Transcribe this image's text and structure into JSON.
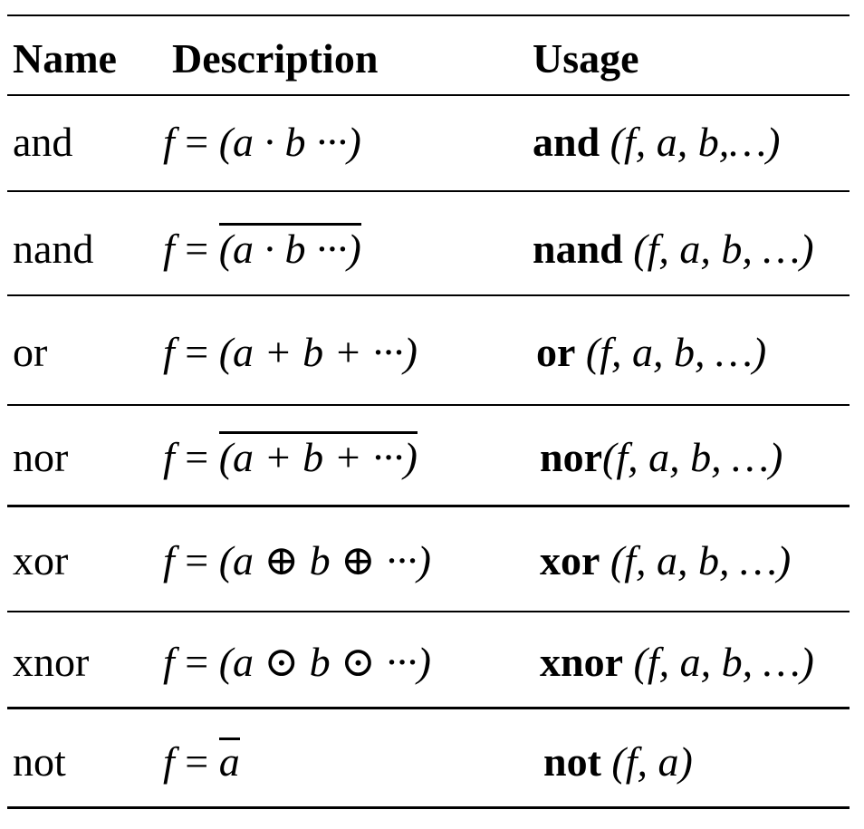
{
  "headers": {
    "name": "Name",
    "description": "Description",
    "usage": "Usage"
  },
  "rows": [
    {
      "name": "and",
      "desc": {
        "f": "f",
        "eq": " = ",
        "expr": "(a · b ···)"
      },
      "usage": {
        "fn": "and",
        "args": " (f, a, b,…)"
      }
    },
    {
      "name": "nand",
      "desc": {
        "f": "f",
        "eq": " = ",
        "expr": "(a · b ···)"
      },
      "usage": {
        "fn": "nand",
        "args": " (f, a, b, …)"
      }
    },
    {
      "name": "or",
      "desc": {
        "f": "f",
        "eq": " = ",
        "expr": "(a + b + ···)"
      },
      "usage": {
        "fn": "or",
        "args": "  (f, a, b, …)"
      }
    },
    {
      "name": "nor",
      "desc": {
        "f": "f",
        "eq": " = ",
        "expr": "(a + b + ···)"
      },
      "usage": {
        "fn": "nor",
        "args": "(f, a, b, …)"
      }
    },
    {
      "name": "xor",
      "desc": {
        "f": "f",
        "eq": " = ",
        "expr": "(a ⊕ b ⊕ ···)"
      },
      "usage": {
        "fn": "xor",
        "args": " (f, a, b, …)"
      }
    },
    {
      "name": "xnor",
      "desc": {
        "f": "f",
        "eq": " = ",
        "expr": "(a ⊙ b ⊙ ···)"
      },
      "usage": {
        "fn": "xnor",
        "args": " (f, a, b, …)"
      }
    },
    {
      "name": "not",
      "desc": {
        "f": "f",
        "eq": "  = ",
        "expr": "a"
      },
      "usage": {
        "fn": "not",
        "args": " (f, a)"
      }
    }
  ]
}
